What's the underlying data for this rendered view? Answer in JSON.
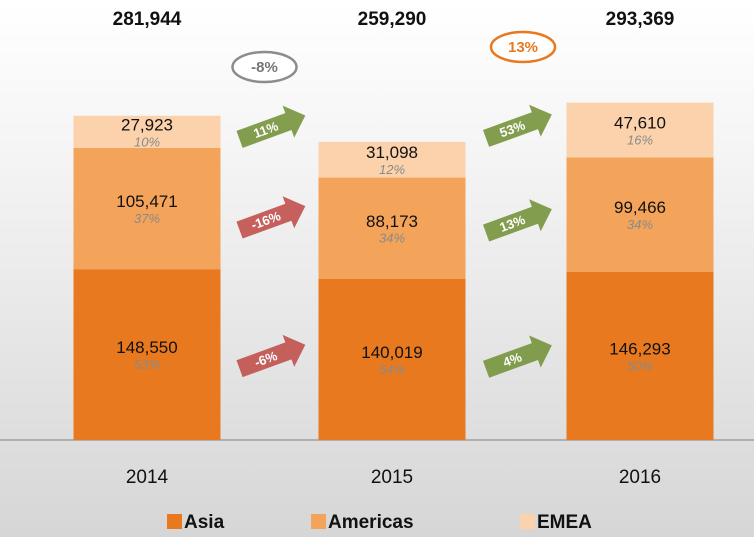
{
  "chart_data": {
    "type": "bar",
    "stacked": true,
    "categories": [
      "2014",
      "2015",
      "2016"
    ],
    "ylim": [
      0,
      320000
    ],
    "series": [
      {
        "name": "Asia",
        "color": "#e8791f",
        "values": [
          148550,
          140019,
          146293
        ],
        "value_labels": [
          "148,550",
          "140,019",
          "146,293"
        ],
        "shares": [
          53,
          54,
          50
        ],
        "share_labels": [
          "53%",
          "54%",
          "50%"
        ],
        "changes": [
          -6,
          4
        ],
        "change_labels": [
          "-6%",
          "4%"
        ]
      },
      {
        "name": "Americas",
        "color": "#f3a35a",
        "values": [
          105471,
          88173,
          99466
        ],
        "value_labels": [
          "105,471",
          "88,173",
          "99,466"
        ],
        "shares": [
          37,
          34,
          34
        ],
        "share_labels": [
          "37%",
          "34%",
          "34%"
        ],
        "changes": [
          -16,
          13
        ],
        "change_labels": [
          "-16%",
          "13%"
        ]
      },
      {
        "name": "EMEA",
        "color": "#fbd2ab",
        "values": [
          27923,
          31098,
          47610
        ],
        "value_labels": [
          "27,923",
          "31,098",
          "47,610"
        ],
        "shares": [
          10,
          12,
          16
        ],
        "share_labels": [
          "10%",
          "12%",
          "16%"
        ],
        "changes": [
          11,
          53
        ],
        "change_labels": [
          "11%",
          "53%"
        ]
      }
    ],
    "totals": [
      281944,
      259290,
      293369
    ],
    "total_labels": [
      "281,944",
      "259,290",
      "293,369"
    ],
    "total_changes": [
      -8,
      13
    ],
    "total_change_labels": [
      "-8%",
      "13%"
    ]
  }
}
